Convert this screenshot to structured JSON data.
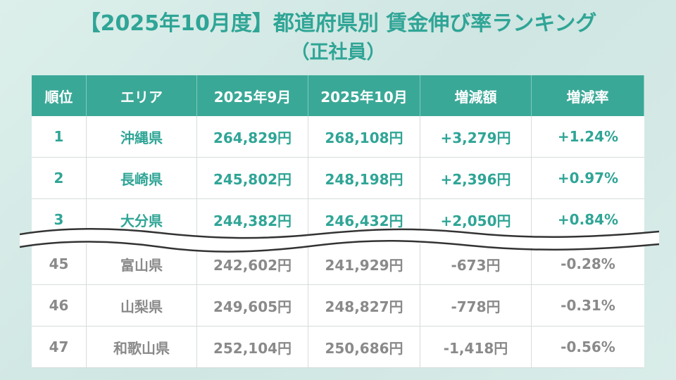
{
  "title": "【2025年10月度】都道府県別 賃金伸び率ランキング",
  "subtitle": "（正社員）",
  "table": {
    "headers": [
      "順位",
      "エリア",
      "2025年9月",
      "2025年10月",
      "増減額",
      "増減率"
    ],
    "top_rows": [
      [
        "1",
        "沖縄県",
        "264,829円",
        "268,108円",
        "+3,279円",
        "+1.24%"
      ],
      [
        "2",
        "長崎県",
        "245,802円",
        "248,198円",
        "+2,396円",
        "+0.97%"
      ],
      [
        "3",
        "大分県",
        "244,382円",
        "246,432円",
        "+2,050円",
        "+0.84%"
      ]
    ],
    "bottom_rows": [
      [
        "45",
        "富山県",
        "242,602円",
        "241,929円",
        "-673円",
        "-0.28%"
      ],
      [
        "46",
        "山梨県",
        "249,605円",
        "248,827円",
        "-778円",
        "-0.31%"
      ],
      [
        "47",
        "和歌山県",
        "252,104円",
        "250,686円",
        "-1,418円",
        "-0.56%"
      ]
    ]
  },
  "colors": {
    "accent": "#3aa897",
    "top_text": "#2fa596",
    "bottom_text": "#8a8a8a",
    "background": "#d6ebe7"
  }
}
